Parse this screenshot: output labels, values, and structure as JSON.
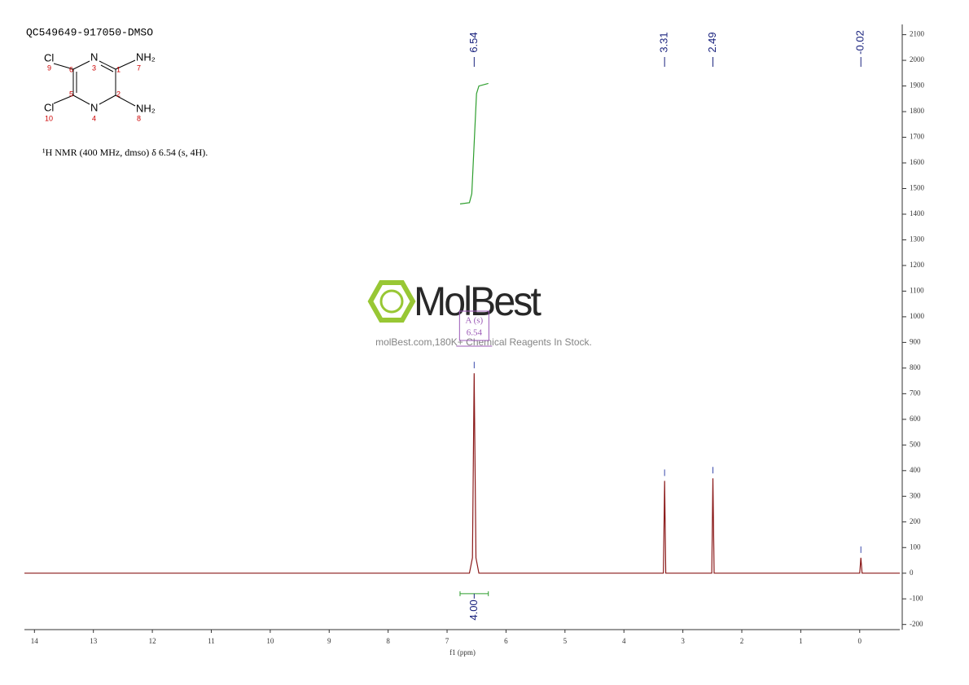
{
  "chart_data": {
    "type": "line",
    "title": "QC549649-917050-DMSO",
    "description": "¹H NMR (400 MHz, dmso) δ 6.54 (s, 4H).",
    "xlabel": "f1 (ppm)",
    "xlim": [
      14.17,
      -0.68
    ],
    "xticks": [
      14,
      13,
      12,
      11,
      10,
      9,
      8,
      7,
      6,
      5,
      4,
      3,
      2,
      1,
      0
    ],
    "ylim": [
      -220,
      2140
    ],
    "yticks": [
      -200,
      -100,
      0,
      100,
      200,
      300,
      400,
      500,
      600,
      700,
      800,
      900,
      1000,
      1100,
      1200,
      1300,
      1400,
      1500,
      1600,
      1700,
      1800,
      1900,
      2000,
      2100
    ],
    "series": [
      {
        "color": "#8b1a1a",
        "x": [
          14.17,
          6.62,
          6.57,
          6.54,
          6.51,
          6.46,
          3.33,
          3.31,
          3.29,
          2.51,
          2.49,
          2.47,
          0.0,
          -0.02,
          -0.04,
          -0.68
        ],
        "values": [
          0,
          0,
          60,
          780,
          60,
          0,
          0,
          360,
          0,
          0,
          370,
          0,
          0,
          60,
          0,
          0
        ]
      },
      {
        "color": "#2e9e2e",
        "x": [
          6.78,
          6.62,
          6.58,
          6.54,
          6.5,
          6.46,
          6.3
        ],
        "values": [
          1440,
          1445,
          1480,
          1675,
          1870,
          1900,
          1910
        ]
      }
    ],
    "peak_labels": [
      6.54,
      3.31,
      2.49,
      -0.02
    ],
    "integrals": [
      {
        "from": 6.78,
        "to": 6.3,
        "value": {
          "value": 4,
          "label": "4.00"
        }
      }
    ],
    "multiplet": {
      "label": "A (s)",
      "shift": 6.54
    },
    "watermark": {
      "brand": "MolBest",
      "tagline": "molBest.com,180K+ Chemical Reagents In Stock."
    },
    "structure": {
      "atoms": [
        "Cl",
        "N",
        "NH₂",
        "Cl",
        "N",
        "NH₂"
      ],
      "numbers": [
        9,
        6,
        3,
        1,
        7,
        5,
        2,
        10,
        4,
        8
      ]
    }
  }
}
